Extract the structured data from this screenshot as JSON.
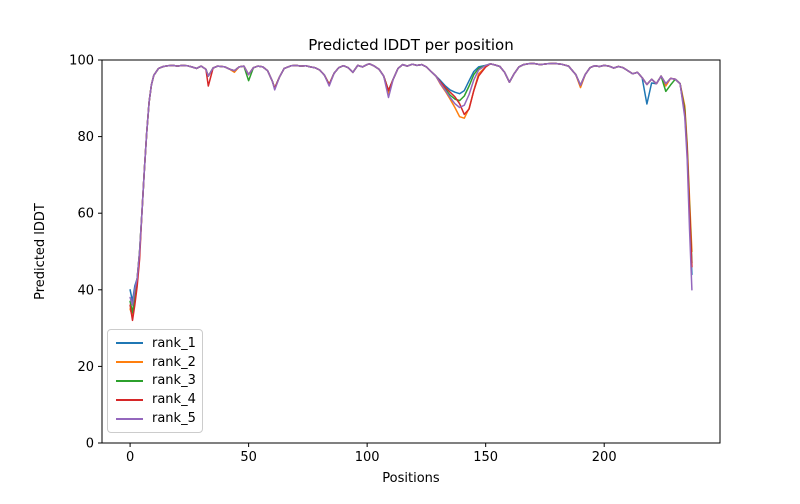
{
  "chart_data": {
    "type": "line",
    "title": "Predicted lDDT per position",
    "xlabel": "Positions",
    "ylabel": "Predicted lDDT",
    "xlim": [
      -11.85,
      248.85
    ],
    "ylim": [
      0,
      100
    ],
    "xticks": [
      0,
      50,
      100,
      150,
      200
    ],
    "yticks": [
      0,
      20,
      40,
      60,
      80,
      100
    ],
    "grid": false,
    "legend_position": "lower left",
    "x": [
      0,
      1,
      2,
      3,
      4,
      5,
      6,
      7,
      8,
      9,
      10,
      12,
      14,
      16,
      18,
      20,
      22,
      24,
      26,
      28,
      30,
      32,
      33,
      35,
      37,
      40,
      42,
      44,
      46,
      48,
      50,
      52,
      54,
      56,
      58,
      60,
      61,
      63,
      65,
      68,
      70,
      72,
      74,
      76,
      78,
      80,
      82,
      84,
      86,
      88,
      90,
      92,
      94,
      96,
      98,
      100,
      101,
      103,
      105,
      107,
      109,
      111,
      113,
      115,
      117,
      119,
      121,
      123,
      125,
      127,
      129,
      131,
      133,
      135,
      137,
      139,
      141,
      143,
      145,
      147,
      150,
      152,
      154,
      156,
      158,
      160,
      162,
      164,
      166,
      168,
      170,
      173,
      176,
      179,
      182,
      185,
      188,
      190,
      192,
      194,
      196,
      198,
      200,
      202,
      204,
      206,
      208,
      210,
      212,
      214,
      216,
      218,
      220,
      222,
      224,
      226,
      228,
      230,
      232,
      234,
      235,
      236,
      237
    ],
    "series": [
      {
        "name": "rank_1",
        "color": "#1f77b4",
        "values": [
          40,
          37,
          41,
          43,
          50,
          60,
          71,
          81,
          89,
          93.5,
          96,
          97.8,
          98.3,
          98.5,
          98.6,
          98.4,
          98.6,
          98.5,
          98.2,
          97.8,
          98.4,
          97.6,
          95.8,
          97.9,
          98.4,
          98.2,
          97.6,
          97.2,
          98.2,
          98.4,
          96.2,
          98,
          98.4,
          98.2,
          97.2,
          94.5,
          92.6,
          95.5,
          97.8,
          98.5,
          98.6,
          98.4,
          98.5,
          98.2,
          98,
          97.4,
          96,
          93.6,
          96.5,
          98,
          98.5,
          98,
          96.8,
          98.6,
          98.2,
          98.8,
          99,
          98.4,
          97.6,
          95.8,
          92,
          95,
          97.8,
          98.8,
          98.4,
          98.9,
          98.6,
          98.8,
          98.2,
          97,
          95.8,
          94.6,
          93.2,
          92.2,
          91.6,
          91.2,
          92,
          94.6,
          97,
          98.2,
          98.6,
          99,
          98.7,
          98.3,
          96.8,
          94.2,
          96.4,
          98.2,
          98.8,
          99,
          99.1,
          98.8,
          99,
          99.1,
          98.9,
          98.4,
          96.2,
          93.4,
          96.2,
          98,
          98.5,
          98.3,
          98.6,
          98.4,
          97.9,
          98.3,
          98,
          97.2,
          96.4,
          96.8,
          95.4,
          88.5,
          94,
          93.8,
          95.8,
          93.8,
          95.2,
          95,
          93.8,
          86,
          76,
          60,
          44
        ]
      },
      {
        "name": "rank_2",
        "color": "#ff7f0e",
        "values": [
          35,
          33,
          38,
          43,
          50,
          60,
          71,
          81,
          89,
          93.5,
          96,
          97.8,
          98.3,
          98.5,
          98.6,
          98.4,
          98.6,
          98.5,
          98.2,
          97.8,
          98.4,
          97.6,
          95.8,
          97.9,
          98.4,
          98.2,
          97.6,
          96.8,
          98.2,
          98.4,
          96.2,
          98,
          98.4,
          98.2,
          97.2,
          94.5,
          92.6,
          95.5,
          97.8,
          98.5,
          98.6,
          98.4,
          98.5,
          98.2,
          98,
          97.4,
          96,
          93.6,
          96.5,
          98,
          98.5,
          98,
          96.8,
          98.6,
          98.2,
          98.8,
          99,
          98.4,
          97.6,
          95.8,
          91.2,
          95,
          97.8,
          98.8,
          98.4,
          98.9,
          98.6,
          98.8,
          98.2,
          97,
          95.8,
          93.6,
          91.8,
          89.8,
          87.6,
          85.2,
          84.8,
          87.4,
          92,
          96.4,
          98.2,
          99,
          98.7,
          98.3,
          96.8,
          94.2,
          96.4,
          98.2,
          98.8,
          99,
          99.1,
          98.8,
          99,
          99.1,
          98.9,
          98.4,
          96.2,
          92.8,
          96.2,
          98,
          98.5,
          98.3,
          98.6,
          98.4,
          97.9,
          98.3,
          98,
          97.2,
          96.4,
          96.8,
          95.4,
          93.6,
          95,
          93.8,
          95.8,
          93.2,
          95.2,
          95,
          93.8,
          88,
          78,
          64,
          50
        ]
      },
      {
        "name": "rank_3",
        "color": "#2ca02c",
        "values": [
          37,
          34,
          39,
          43,
          50,
          60,
          71,
          81,
          89,
          93.5,
          96,
          97.8,
          98.3,
          98.5,
          98.6,
          98.4,
          98.6,
          98.5,
          98.2,
          97.8,
          98.4,
          97.6,
          95.8,
          97.9,
          98.4,
          98.2,
          97.6,
          97.2,
          98.2,
          98.4,
          94.6,
          98,
          98.4,
          98.2,
          97.2,
          94.5,
          92.6,
          95.5,
          97.8,
          98.5,
          98.6,
          98.4,
          98.5,
          98.2,
          98,
          97.4,
          96,
          93.6,
          96.5,
          98,
          98.5,
          98,
          96.8,
          98.6,
          98.2,
          98.8,
          99,
          98.4,
          97.6,
          95.8,
          92,
          95,
          97.8,
          98.8,
          98.4,
          98.9,
          98.6,
          98.8,
          98.2,
          97,
          95.8,
          94,
          92.4,
          90.8,
          89.8,
          89.4,
          90.6,
          93.2,
          96.2,
          97.8,
          98.6,
          99,
          98.7,
          98.3,
          96.8,
          94.2,
          96.4,
          98.2,
          98.8,
          99,
          99.1,
          98.8,
          99,
          99.1,
          98.9,
          98.4,
          96.2,
          93.4,
          96.2,
          98,
          98.5,
          98.3,
          98.6,
          98.4,
          97.9,
          98.3,
          98,
          97.2,
          96.4,
          96.8,
          95.4,
          93.6,
          95,
          93.8,
          95.8,
          91.8,
          93.5,
          95,
          93.8,
          87,
          77,
          62,
          47
        ]
      },
      {
        "name": "rank_4",
        "color": "#d62728",
        "values": [
          36,
          32,
          36,
          41,
          48,
          60,
          71,
          81,
          89,
          93.5,
          96,
          97.8,
          98.3,
          98.5,
          98.6,
          98.4,
          98.6,
          98.5,
          98.2,
          97.8,
          98.4,
          97.6,
          93.2,
          97.9,
          98.4,
          98.2,
          97.6,
          97.2,
          98.2,
          98.4,
          96.2,
          98,
          98.4,
          98.2,
          97.2,
          94.5,
          92.6,
          95.5,
          97.8,
          98.5,
          98.6,
          98.4,
          98.5,
          98.2,
          98,
          97.4,
          96,
          93.6,
          96.5,
          98,
          98.5,
          98,
          96.8,
          98.6,
          98.2,
          98.8,
          99,
          98.4,
          97.6,
          95.8,
          92,
          95,
          97.8,
          98.8,
          98.4,
          98.9,
          98.6,
          98.8,
          98.2,
          97,
          95.8,
          94.2,
          92.8,
          91.6,
          90.4,
          88.6,
          85.8,
          87.2,
          92,
          95.8,
          98.2,
          99,
          98.7,
          98.3,
          96.8,
          94.2,
          96.4,
          98.2,
          98.8,
          99,
          99.1,
          98.8,
          99,
          99.1,
          98.9,
          98.4,
          96.2,
          93.4,
          96.2,
          98,
          98.5,
          98.3,
          98.6,
          98.4,
          97.9,
          98.3,
          98,
          97.2,
          96.4,
          96.8,
          95.4,
          93.6,
          95,
          93.8,
          95.8,
          93.8,
          95.2,
          95,
          93.8,
          86,
          76,
          61,
          46
        ]
      },
      {
        "name": "rank_5",
        "color": "#9467bd",
        "values": [
          38,
          36,
          40,
          43,
          50,
          60,
          71,
          81,
          89,
          93.5,
          96,
          97.8,
          98.3,
          98.5,
          98.6,
          98.4,
          98.6,
          98.5,
          98.2,
          97.8,
          98.4,
          97.6,
          95.8,
          97.9,
          98.4,
          98.2,
          97.6,
          97.2,
          98.2,
          98.4,
          96.2,
          98,
          98.4,
          98.2,
          97.2,
          94.5,
          92.2,
          95.5,
          97.8,
          98.5,
          98.6,
          98.4,
          98.5,
          98.2,
          98,
          97.4,
          96,
          93.2,
          96.5,
          98,
          98.5,
          98,
          96.8,
          98.6,
          98.2,
          98.8,
          99,
          98.4,
          97.6,
          95.8,
          90.2,
          95,
          97.8,
          98.8,
          98.4,
          98.9,
          98.6,
          98.8,
          98.2,
          97,
          95.8,
          93.8,
          92,
          90.2,
          88.6,
          87.6,
          88.2,
          91,
          94.8,
          97.4,
          98.6,
          99,
          98.7,
          98.3,
          96.8,
          94.2,
          96.4,
          98.2,
          98.8,
          99,
          99.1,
          98.8,
          99,
          99.1,
          98.9,
          98.4,
          96.2,
          93.4,
          96.2,
          98,
          98.5,
          98.3,
          98.6,
          98.4,
          97.9,
          98.3,
          98,
          97.2,
          96.4,
          96.8,
          95.4,
          93.6,
          95,
          93.8,
          95.8,
          93.8,
          95.2,
          95,
          93.8,
          85,
          74,
          56,
          40
        ]
      }
    ]
  }
}
